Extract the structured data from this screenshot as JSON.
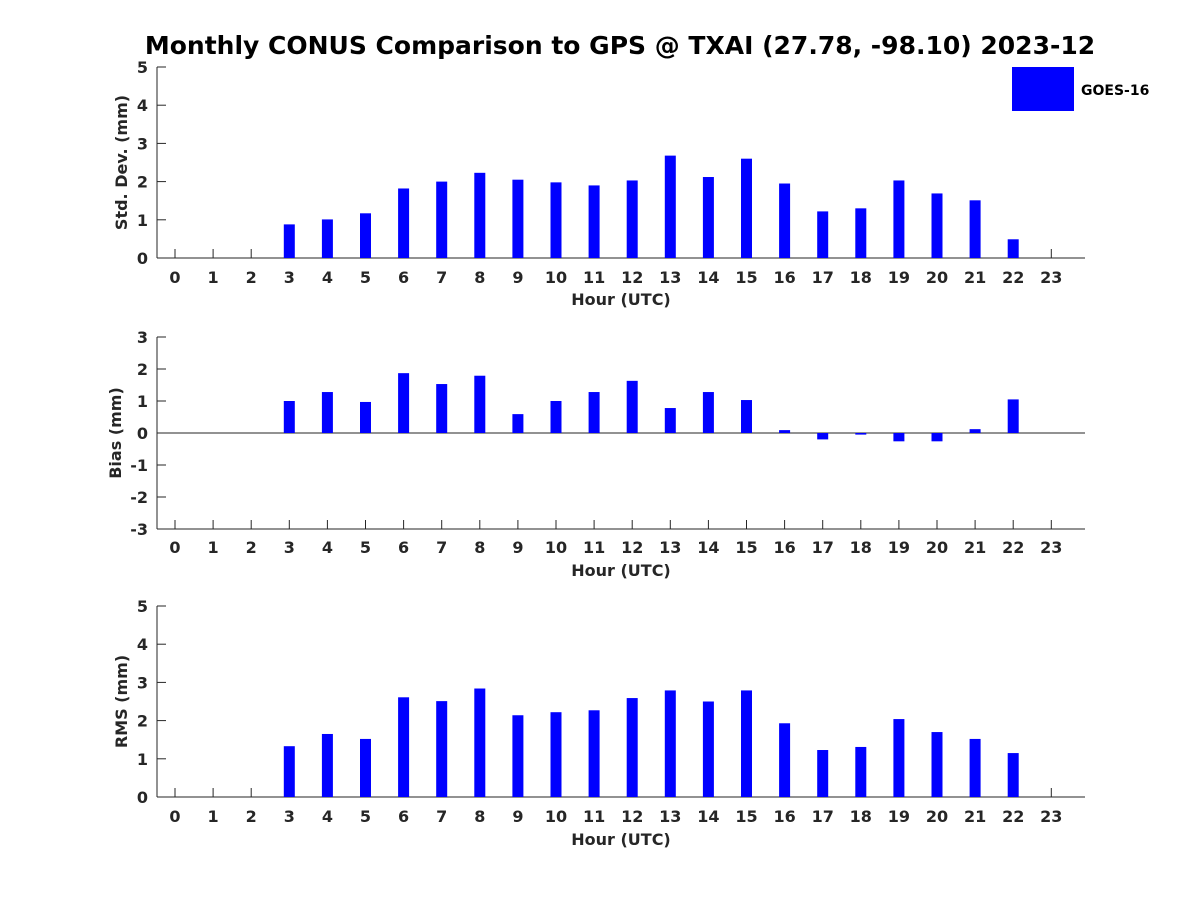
{
  "title": "Monthly CONUS Comparison to GPS @ TXAI (27.78, -98.10) 2023-12",
  "legend": {
    "label": "GOES-16",
    "color": "#0000ff",
    "placement": "top-right"
  },
  "chart_data": [
    {
      "type": "bar",
      "ylabel": "Std. Dev. (mm)",
      "xlabel": "Hour (UTC)",
      "ylim": [
        0,
        5
      ],
      "yticks": [
        0,
        1,
        2,
        3,
        4,
        5
      ],
      "x": [
        0,
        1,
        2,
        3,
        4,
        5,
        6,
        7,
        8,
        9,
        10,
        11,
        12,
        13,
        14,
        15,
        16,
        17,
        18,
        19,
        20,
        21,
        22,
        23
      ],
      "series": [
        {
          "name": "GOES-16",
          "color": "#0000ff",
          "values": [
            null,
            null,
            null,
            0.88,
            1.01,
            1.17,
            1.82,
            2.0,
            2.23,
            2.05,
            1.98,
            1.9,
            2.03,
            2.68,
            2.12,
            2.6,
            1.95,
            1.22,
            1.3,
            2.03,
            1.69,
            1.51,
            0.49,
            null
          ]
        }
      ]
    },
    {
      "type": "bar",
      "ylabel": "Bias (mm)",
      "xlabel": "Hour (UTC)",
      "ylim": [
        -3,
        3
      ],
      "yticks": [
        -3,
        -2,
        -1,
        0,
        1,
        2,
        3
      ],
      "x": [
        0,
        1,
        2,
        3,
        4,
        5,
        6,
        7,
        8,
        9,
        10,
        11,
        12,
        13,
        14,
        15,
        16,
        17,
        18,
        19,
        20,
        21,
        22,
        23
      ],
      "series": [
        {
          "name": "GOES-16",
          "color": "#0000ff",
          "values": [
            null,
            null,
            null,
            1.0,
            1.28,
            0.97,
            1.87,
            1.53,
            1.79,
            0.59,
            1.0,
            1.28,
            1.63,
            0.78,
            1.28,
            1.03,
            0.09,
            -0.2,
            -0.05,
            -0.26,
            -0.26,
            0.12,
            1.05,
            null
          ]
        }
      ]
    },
    {
      "type": "bar",
      "ylabel": "RMS (mm)",
      "xlabel": "Hour (UTC)",
      "ylim": [
        0,
        5
      ],
      "yticks": [
        0,
        1,
        2,
        3,
        4,
        5
      ],
      "x": [
        0,
        1,
        2,
        3,
        4,
        5,
        6,
        7,
        8,
        9,
        10,
        11,
        12,
        13,
        14,
        15,
        16,
        17,
        18,
        19,
        20,
        21,
        22,
        23
      ],
      "series": [
        {
          "name": "GOES-16",
          "color": "#0000ff",
          "values": [
            null,
            null,
            null,
            1.33,
            1.65,
            1.52,
            2.61,
            2.51,
            2.84,
            2.14,
            2.22,
            2.27,
            2.59,
            2.79,
            2.5,
            2.79,
            1.93,
            1.23,
            1.31,
            2.04,
            1.7,
            1.52,
            1.15,
            null
          ]
        }
      ]
    }
  ]
}
